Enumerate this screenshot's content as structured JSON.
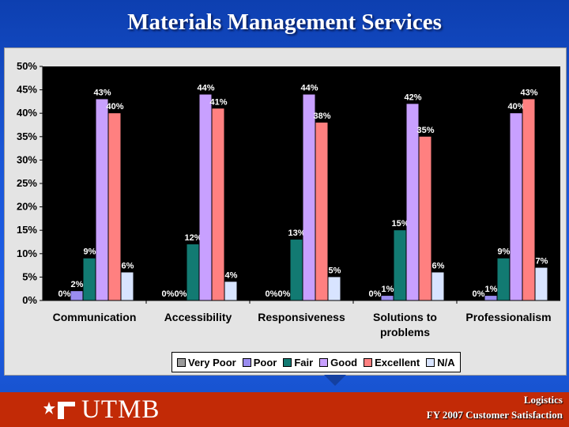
{
  "slide": {
    "title": "Materials Management Services",
    "footer_line1": "Logistics",
    "footer_line2": "FY 2007 Customer Satisfaction",
    "logo_text": "UTMB"
  },
  "colors": {
    "very_poor": "#9a9a9a",
    "poor": "#9a8cf0",
    "fair": "#127a72",
    "good": "#c8a0ff",
    "excellent": "#ff8080",
    "na": "#d8e4ff",
    "plot_bg": "#000000",
    "footer": "#c22a06"
  },
  "chart_data": {
    "type": "bar",
    "title": "",
    "xlabel": "",
    "ylabel": "",
    "ylim": [
      0,
      50
    ],
    "yticks": [
      "0%",
      "5%",
      "10%",
      "15%",
      "20%",
      "25%",
      "30%",
      "35%",
      "40%",
      "45%",
      "50%"
    ],
    "categories": [
      "Communication",
      "Accessibility",
      "Responsiveness",
      "Solutions to problems",
      "Professionalism"
    ],
    "category_lines": [
      [
        "Communication"
      ],
      [
        "Accessibility"
      ],
      [
        "Responsiveness"
      ],
      [
        "Solutions to",
        "problems"
      ],
      [
        "Professionalism"
      ]
    ],
    "grid": false,
    "legend_position": "bottom",
    "series": [
      {
        "name": "Very Poor",
        "color": "#9a9a9a",
        "values": [
          0,
          0,
          0,
          0,
          0
        ],
        "labels": [
          "0%",
          "0%",
          "0%",
          "0%",
          "0%"
        ]
      },
      {
        "name": "Poor",
        "color": "#9a8cf0",
        "values": [
          2,
          0,
          0,
          1,
          1
        ],
        "labels": [
          "2%",
          "0%",
          "0%",
          "1%",
          "1%"
        ]
      },
      {
        "name": "Fair",
        "color": "#127a72",
        "values": [
          9,
          12,
          13,
          15,
          9
        ],
        "labels": [
          "9%",
          "12%",
          "13%",
          "15%",
          "9%"
        ]
      },
      {
        "name": "Good",
        "color": "#c8a0ff",
        "values": [
          43,
          44,
          44,
          42,
          40
        ],
        "labels": [
          "43%",
          "44%",
          "44%",
          "42%",
          "40%"
        ]
      },
      {
        "name": "Excellent",
        "color": "#ff8080",
        "values": [
          40,
          41,
          38,
          35,
          43
        ],
        "labels": [
          "40%",
          "41%",
          "38%",
          "35%",
          "43%"
        ]
      },
      {
        "name": "N/A",
        "color": "#d8e4ff",
        "values": [
          6,
          4,
          5,
          6,
          7
        ],
        "labels": [
          "6%",
          "4%",
          "5%",
          "6%",
          "7%"
        ]
      }
    ]
  }
}
